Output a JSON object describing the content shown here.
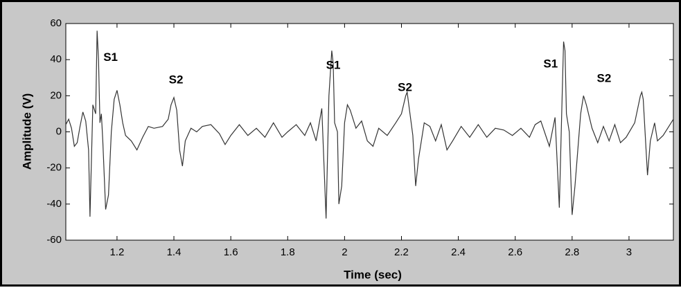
{
  "chart_data": {
    "type": "line",
    "x_label": "Time (sec)",
    "y_label": "Amplitude (V)",
    "x": [
      1.02,
      1.03,
      1.04,
      1.05,
      1.06,
      1.07,
      1.08,
      1.09,
      1.1,
      1.105,
      1.115,
      1.125,
      1.13,
      1.135,
      1.14,
      1.145,
      1.15,
      1.16,
      1.17,
      1.18,
      1.19,
      1.2,
      1.21,
      1.22,
      1.23,
      1.25,
      1.27,
      1.29,
      1.31,
      1.33,
      1.36,
      1.38,
      1.39,
      1.4,
      1.41,
      1.42,
      1.43,
      1.44,
      1.46,
      1.48,
      1.5,
      1.53,
      1.56,
      1.58,
      1.6,
      1.63,
      1.66,
      1.69,
      1.72,
      1.75,
      1.78,
      1.8,
      1.83,
      1.86,
      1.88,
      1.9,
      1.92,
      1.935,
      1.945,
      1.955,
      1.96,
      1.965,
      1.975,
      1.98,
      1.99,
      2.0,
      2.01,
      2.02,
      2.04,
      2.06,
      2.08,
      2.1,
      2.12,
      2.15,
      2.18,
      2.2,
      2.215,
      2.22,
      2.23,
      2.24,
      2.25,
      2.26,
      2.28,
      2.3,
      2.32,
      2.34,
      2.36,
      2.38,
      2.41,
      2.44,
      2.47,
      2.5,
      2.53,
      2.56,
      2.59,
      2.62,
      2.65,
      2.67,
      2.69,
      2.72,
      2.74,
      2.755,
      2.765,
      2.77,
      2.775,
      2.78,
      2.79,
      2.8,
      2.81,
      2.83,
      2.84,
      2.85,
      2.87,
      2.89,
      2.91,
      2.93,
      2.95,
      2.97,
      2.99,
      3.02,
      3.04,
      3.045,
      3.05,
      3.06,
      3.065,
      3.075,
      3.09,
      3.1,
      3.12,
      3.14,
      3.156
    ],
    "series": [
      {
        "color": "#333333",
        "values": [
          4,
          7,
          2,
          -8,
          -6,
          3,
          11,
          6,
          -10,
          -47,
          15,
          10,
          56,
          40,
          5,
          10,
          -5,
          -43,
          -35,
          0,
          18,
          23,
          15,
          5,
          -2,
          -5,
          -10,
          -3,
          3,
          2,
          3,
          7,
          15,
          19,
          12,
          -10,
          -19,
          -5,
          2,
          0,
          3,
          4,
          -1,
          -7,
          -2,
          4,
          -2,
          2,
          -3,
          5,
          -3,
          0,
          4,
          -2,
          5,
          -5,
          13,
          -48,
          20,
          45,
          38,
          5,
          0,
          -40,
          -30,
          5,
          15,
          12,
          2,
          6,
          -5,
          -8,
          2,
          -2,
          5,
          10,
          20,
          22,
          10,
          -2,
          -30,
          -15,
          5,
          3,
          -5,
          4,
          -10,
          -5,
          3,
          -3,
          4,
          -3,
          2,
          1,
          -2,
          2,
          -3,
          4,
          6,
          -8,
          8,
          -42,
          20,
          50,
          45,
          10,
          0,
          -46,
          -30,
          10,
          20,
          15,
          2,
          -6,
          3,
          -5,
          4,
          -6,
          -3,
          5,
          20,
          22,
          18,
          -10,
          -24,
          -5,
          5,
          -5,
          -2,
          3,
          7
        ]
      }
    ],
    "annotations": [
      {
        "text": "S1",
        "x": 1.152,
        "y": 41
      },
      {
        "text": "S2",
        "x": 1.382,
        "y": 28.5
      },
      {
        "text": "S1",
        "x": 1.935,
        "y": 36.6
      },
      {
        "text": "S2",
        "x": 2.187,
        "y": 24.3
      },
      {
        "text": "S1",
        "x": 2.699,
        "y": 37.4
      },
      {
        "text": "S2",
        "x": 2.887,
        "y": 29.3
      }
    ],
    "xlim": [
      1.02,
      3.156
    ],
    "ylim": [
      -60,
      60
    ],
    "xticks": [
      1.2,
      1.4,
      1.6,
      1.8,
      2,
      2.2,
      2.4,
      2.6,
      2.8,
      3
    ],
    "yticks": [
      -60,
      -40,
      -20,
      0,
      20,
      40,
      60
    ]
  }
}
